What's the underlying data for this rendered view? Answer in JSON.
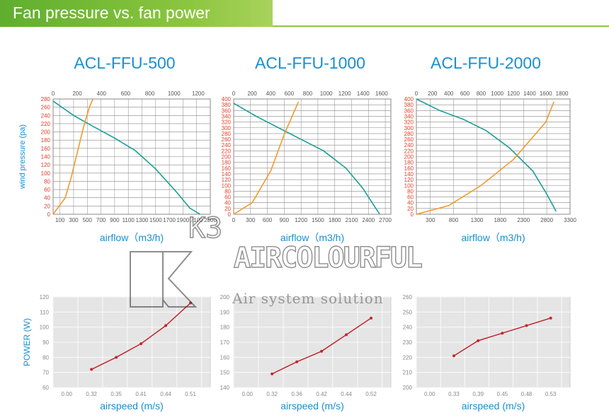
{
  "banner": {
    "title": "Fan pressure vs. fan power"
  },
  "colors": {
    "pressure_curve": "#1a9e9a",
    "power_curve": "#f39a2b",
    "power_line": "#c0272d",
    "axis_blue": "#1a8fd0",
    "axis_red": "#e0402a",
    "grid": "#888888"
  },
  "watermark": {
    "brand": "AIRCOLOURFUL",
    "subtitle": "Air system solution",
    "logo_text": "K3"
  },
  "chart_data": [
    {
      "type": "line",
      "title": "ACL-FFU-500",
      "xlabel": "airflow（m3/h)",
      "ylabel": "wind pressure (pa)",
      "x_ticks": [
        100,
        300,
        500,
        700,
        900,
        1100,
        1300,
        1500,
        1700,
        1900,
        2100,
        2300
      ],
      "xlim": [
        0,
        2300
      ],
      "ylim": [
        0,
        280
      ],
      "y_ticks": [
        0,
        20,
        40,
        60,
        80,
        100,
        120,
        140,
        160,
        180,
        200,
        220,
        240,
        260,
        280
      ],
      "power_ticks": [
        0,
        200,
        400,
        600,
        800,
        1000,
        1200
      ],
      "power_lim": [
        0,
        1300
      ],
      "pressure_series": {
        "x": [
          0,
          300,
          600,
          900,
          1200,
          1500,
          1800,
          2000,
          2150
        ],
        "y": [
          275,
          240,
          212,
          185,
          155,
          110,
          55,
          15,
          0
        ]
      },
      "power_series": {
        "x": [
          0,
          100,
          150,
          200,
          250,
          300,
          330
        ],
        "y": [
          0,
          40,
          90,
          150,
          210,
          260,
          280
        ]
      }
    },
    {
      "type": "line",
      "title": "ACL-FFU-1000",
      "xlabel": "airflow（m3/h)",
      "ylabel": "",
      "x_ticks": [
        0,
        300,
        600,
        900,
        1200,
        1500,
        1800,
        2100,
        2400,
        2700
      ],
      "xlim": [
        0,
        2800
      ],
      "ylim": [
        0,
        400
      ],
      "y_ticks": [
        0,
        20,
        40,
        60,
        80,
        100,
        120,
        140,
        160,
        180,
        200,
        220,
        240,
        260,
        280,
        300,
        320,
        340,
        360,
        380,
        400
      ],
      "power_ticks": [
        0,
        200,
        400,
        600,
        800,
        1000,
        1200,
        1400,
        1600
      ],
      "power_lim": [
        0,
        1700
      ],
      "pressure_series": {
        "x": [
          0,
          400,
          800,
          1200,
          1600,
          2000,
          2300,
          2500,
          2600
        ],
        "y": [
          385,
          340,
          300,
          260,
          220,
          160,
          90,
          30,
          0
        ]
      },
      "power_series": {
        "x": [
          0,
          200,
          400,
          550,
          700
        ],
        "y": [
          0,
          40,
          150,
          280,
          390
        ]
      }
    },
    {
      "type": "line",
      "title": "ACL-FFU-2000",
      "xlabel": "airflow（m3/h)",
      "ylabel": "",
      "x_ticks": [
        300,
        800,
        1300,
        1800,
        2300,
        2800,
        3300
      ],
      "xlim": [
        0,
        3300
      ],
      "ylim": [
        0,
        400
      ],
      "y_ticks": [
        0,
        20,
        40,
        60,
        80,
        100,
        120,
        140,
        160,
        180,
        200,
        220,
        240,
        260,
        280,
        300,
        320,
        340,
        360,
        380,
        400
      ],
      "power_ticks": [
        0,
        200,
        400,
        600,
        800,
        1000,
        1200,
        1400,
        1600,
        1800
      ],
      "power_lim": [
        0,
        1900
      ],
      "pressure_series": {
        "x": [
          0,
          500,
          1000,
          1500,
          2000,
          2500,
          2800,
          3000
        ],
        "y": [
          400,
          360,
          330,
          290,
          230,
          150,
          70,
          10
        ]
      },
      "power_series": {
        "x": [
          0,
          400,
          800,
          1200,
          1600,
          1700
        ],
        "y": [
          0,
          30,
          100,
          190,
          320,
          390
        ]
      }
    },
    {
      "type": "line",
      "title": "",
      "xlabel": "airspeed (m/s)",
      "ylabel": "POWER (W)",
      "categories": [
        "0.00",
        "0.32",
        "0.35",
        "0.41",
        "0.44",
        "0.51"
      ],
      "ylim": [
        60,
        120
      ],
      "y_ticks": [
        60,
        70,
        80,
        90,
        100,
        110,
        120
      ],
      "series": [
        {
          "values": [
            null,
            72,
            80,
            89,
            101,
            116
          ]
        }
      ]
    },
    {
      "type": "line",
      "title": "",
      "xlabel": "airspeed (m/s)",
      "ylabel": "",
      "categories": [
        "0.00",
        "0.32",
        "0.36",
        "0.42",
        "0.44",
        "0.52"
      ],
      "ylim": [
        140,
        200
      ],
      "y_ticks": [
        140,
        150,
        160,
        170,
        180,
        190,
        200
      ],
      "series": [
        {
          "values": [
            null,
            149,
            157,
            164,
            175,
            186
          ]
        }
      ]
    },
    {
      "type": "line",
      "title": "",
      "xlabel": "airspeed (m/s)",
      "ylabel": "",
      "categories": [
        "0.00",
        "0.33",
        "0.39",
        "0.45",
        "0.48",
        "0.53"
      ],
      "ylim": [
        200,
        260
      ],
      "y_ticks": [
        200,
        210,
        220,
        230,
        240,
        250,
        260
      ],
      "series": [
        {
          "values": [
            null,
            221,
            231,
            236,
            241,
            246
          ]
        }
      ]
    }
  ]
}
